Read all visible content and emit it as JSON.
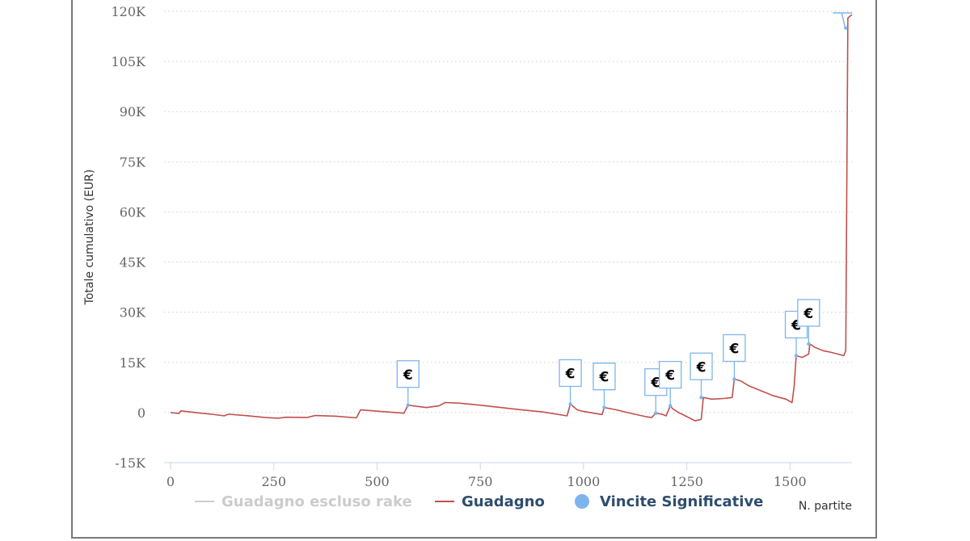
{
  "chart_data": {
    "type": "line",
    "title": "",
    "xlabel": "N. partite",
    "ylabel": "Totale cumulativo (EUR)",
    "xlim": [
      0,
      1650
    ],
    "ylim": [
      -15000,
      120000
    ],
    "x_ticks": [
      0,
      250,
      500,
      750,
      1000,
      1250,
      1500
    ],
    "y_ticks": [
      {
        "value": -15000,
        "label": "-15K"
      },
      {
        "value": 0,
        "label": "0"
      },
      {
        "value": 15000,
        "label": "15K"
      },
      {
        "value": 30000,
        "label": "30K"
      },
      {
        "value": 45000,
        "label": "45K"
      },
      {
        "value": 60000,
        "label": "60K"
      },
      {
        "value": 75000,
        "label": "75K"
      },
      {
        "value": 90000,
        "label": "90K"
      },
      {
        "value": 105000,
        "label": "105K"
      },
      {
        "value": 120000,
        "label": "120K"
      }
    ],
    "grid": "horizontal dotted",
    "legend_position": "bottom",
    "legend": [
      {
        "label": "Guadagno escluso rake",
        "symbol": "line",
        "color": "#cccccc",
        "text_color": "#cccccc",
        "hidden": true
      },
      {
        "label": "Guadagno",
        "symbol": "line",
        "color": "#c0504d",
        "text_color": "#2f4d6d"
      },
      {
        "label": "Vincite Significative",
        "symbol": "circle",
        "color": "#7cb5ec",
        "text_color": "#2f4d6d"
      }
    ],
    "series": [
      {
        "name": "Guadagno",
        "color": "#c0504d",
        "x": [
          0,
          20,
          25,
          60,
          100,
          130,
          140,
          180,
          230,
          260,
          280,
          330,
          350,
          400,
          450,
          460,
          500,
          565,
          575,
          600,
          620,
          650,
          665,
          700,
          750,
          800,
          850,
          900,
          960,
          968,
          985,
          1000,
          1045,
          1050,
          1080,
          1100,
          1120,
          1150,
          1165,
          1175,
          1190,
          1200,
          1210,
          1215,
          1230,
          1250,
          1270,
          1285,
          1290,
          1310,
          1340,
          1360,
          1365,
          1380,
          1400,
          1430,
          1460,
          1490,
          1505,
          1510,
          1515,
          1530,
          1545,
          1548,
          1560,
          1580,
          1600,
          1615,
          1630,
          1635,
          1640,
          1650
        ],
        "y": [
          0,
          -300,
          500,
          0,
          -500,
          -1000,
          -500,
          -900,
          -1500,
          -1700,
          -1400,
          -1500,
          -900,
          -1100,
          -1600,
          800,
          400,
          -200,
          2200,
          1800,
          1500,
          2000,
          3000,
          2800,
          2200,
          1500,
          800,
          200,
          -1000,
          2500,
          800,
          300,
          -600,
          1500,
          800,
          200,
          -400,
          -1200,
          -1500,
          -200,
          -500,
          -1000,
          2000,
          1200,
          0,
          -1200,
          -2500,
          -2000,
          4500,
          4000,
          4200,
          4500,
          10000,
          9500,
          8000,
          6500,
          5000,
          4000,
          3000,
          8000,
          17000,
          16500,
          17500,
          20500,
          19500,
          18500,
          18000,
          17500,
          17000,
          18500,
          118000,
          119000
        ]
      },
      {
        "name": "Vincite Significative",
        "type": "flags",
        "color": "#7cb5ec",
        "marker_label": "€",
        "x": [
          575,
          968,
          1050,
          1175,
          1210,
          1285,
          1365,
          1515,
          1545,
          1635
        ],
        "y": [
          2200,
          2500,
          1500,
          -200,
          2000,
          4500,
          10000,
          17000,
          20500,
          115000
        ]
      }
    ]
  }
}
